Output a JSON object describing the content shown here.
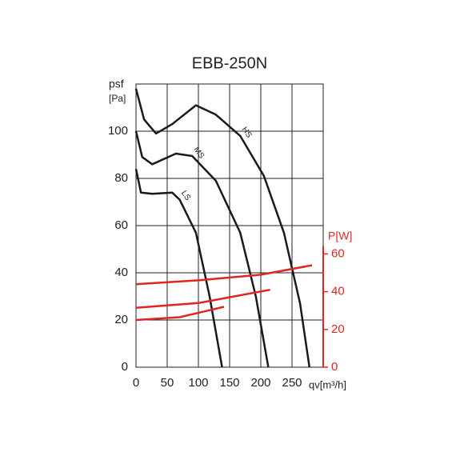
{
  "chart_data": {
    "type": "line",
    "title": "EBB-250N",
    "y_label": "psf",
    "y_unit": "[Pa]",
    "x_label": "qv[m³/h]",
    "y2_label": "P[W]",
    "xlim": [
      0,
      300
    ],
    "xticks": [
      0,
      50,
      100,
      150,
      200,
      250
    ],
    "ylim": [
      0,
      120
    ],
    "yticks": [
      0,
      20,
      40,
      60,
      80,
      100
    ],
    "y2lim": [
      0,
      150
    ],
    "y2ticks": [
      0,
      20,
      40,
      60
    ],
    "grid": true,
    "y2_color": "#e0261f",
    "series": [
      {
        "name": "HS",
        "color": "#1a1a1a",
        "x": [
          0,
          13,
          32,
          58,
          96,
          128,
          167,
          205,
          237,
          263,
          278
        ],
        "values": [
          118,
          105,
          99,
          103,
          111,
          107,
          98,
          81,
          57,
          27,
          0
        ]
      },
      {
        "name": "MS",
        "color": "#1a1a1a",
        "x": [
          0,
          10,
          26,
          64,
          90,
          128,
          167,
          192,
          212
        ],
        "values": [
          100,
          89,
          86,
          90.5,
          89.5,
          79,
          57,
          30,
          0
        ]
      },
      {
        "name": "LS",
        "color": "#1a1a1a",
        "x": [
          0,
          8,
          26,
          58,
          70,
          96,
          118,
          138
        ],
        "values": [
          84,
          74,
          73.5,
          74,
          71,
          57,
          30,
          0
        ]
      },
      {
        "axis": "y2",
        "color": "#e0261f",
        "x": [
          0,
          100,
          200,
          282
        ],
        "values": [
          44,
          46,
          49,
          54
        ]
      },
      {
        "axis": "y2",
        "color": "#e0261f",
        "x": [
          0,
          100,
          215
        ],
        "values": [
          31.5,
          34,
          41
        ]
      },
      {
        "axis": "y2",
        "color": "#e0261f",
        "x": [
          0,
          70,
          141
        ],
        "values": [
          25,
          26.5,
          32
        ]
      }
    ]
  }
}
